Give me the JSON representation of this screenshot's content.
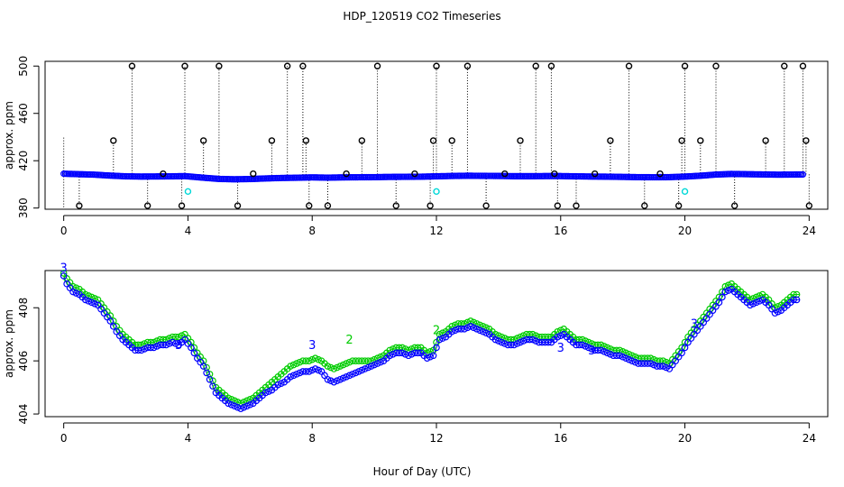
{
  "figure": {
    "title": "HDP_120519  CO2 Timeseries",
    "xlabel": "Hour of Day (UTC)"
  },
  "colors": {
    "blue": "#0000ff",
    "green": "#00cc00",
    "cyan": "#00d8d8",
    "black": "#000000"
  },
  "chart_data": [
    {
      "type": "scatter",
      "title": "",
      "xlabel": "",
      "ylabel": "approx. ppm",
      "xlim": [
        -0.6,
        24.6
      ],
      "ylim": [
        379,
        504
      ],
      "xticks": [
        0,
        4,
        8,
        12,
        16,
        20,
        24
      ],
      "yticks": [
        380,
        420,
        460,
        500
      ],
      "baseline": [
        [
          0,
          409
        ],
        [
          0.5,
          408.6
        ],
        [
          1.0,
          408.2
        ],
        [
          1.5,
          407.4
        ],
        [
          2.0,
          406.8
        ],
        [
          2.5,
          406.6
        ],
        [
          3.0,
          406.7
        ],
        [
          3.5,
          406.8
        ],
        [
          3.9,
          407.0
        ],
        [
          4.2,
          406.3
        ],
        [
          4.6,
          405.4
        ],
        [
          5.0,
          404.6
        ],
        [
          5.5,
          404.3
        ],
        [
          6.0,
          404.5
        ],
        [
          6.5,
          405.0
        ],
        [
          7.0,
          405.4
        ],
        [
          7.5,
          405.6
        ],
        [
          8.0,
          405.9
        ],
        [
          8.5,
          405.7
        ],
        [
          9.0,
          405.9
        ],
        [
          9.5,
          406.0
        ],
        [
          10.0,
          406.1
        ],
        [
          10.5,
          406.3
        ],
        [
          11.0,
          406.4
        ],
        [
          11.5,
          406.5
        ],
        [
          12.0,
          406.8
        ],
        [
          12.5,
          407.1
        ],
        [
          13.0,
          407.3
        ],
        [
          13.5,
          407.2
        ],
        [
          14.0,
          407.1
        ],
        [
          14.5,
          406.9
        ],
        [
          15.0,
          406.9
        ],
        [
          15.5,
          407.0
        ],
        [
          16.0,
          407.0
        ],
        [
          16.5,
          406.8
        ],
        [
          17.0,
          406.6
        ],
        [
          17.5,
          406.5
        ],
        [
          18.0,
          406.3
        ],
        [
          18.5,
          406.1
        ],
        [
          19.0,
          406.0
        ],
        [
          19.5,
          406.1
        ],
        [
          20.0,
          406.6
        ],
        [
          20.5,
          407.3
        ],
        [
          21.0,
          408.3
        ],
        [
          21.5,
          408.8
        ],
        [
          22.0,
          408.6
        ],
        [
          22.5,
          408.4
        ],
        [
          23.0,
          408.2
        ],
        [
          23.5,
          408.3
        ],
        [
          23.8,
          408.4
        ]
      ],
      "spike_x": [
        0.5,
        1.6,
        2.2,
        2.7,
        3.2,
        3.8,
        3.9,
        4.5,
        5.0,
        5.6,
        6.1,
        6.7,
        7.2,
        7.7,
        7.8,
        7.9,
        8.5,
        9.1,
        9.6,
        10.1,
        10.7,
        11.3,
        11.8,
        11.9,
        12.0,
        12.5,
        13.0,
        13.6,
        14.2,
        14.7,
        15.2,
        15.7,
        15.8,
        15.9,
        16.5,
        17.1,
        17.6,
        18.2,
        18.7,
        19.2,
        19.8,
        19.9,
        20.0,
        20.5,
        21.0,
        21.6,
        22.6,
        23.2,
        23.8,
        23.9,
        24.0
      ],
      "spike_y": [
        382,
        437,
        500,
        382,
        409,
        382,
        500,
        437,
        500,
        382,
        409,
        437,
        500,
        500,
        437,
        382,
        382,
        409,
        437,
        500,
        382,
        409,
        382,
        437,
        500,
        437,
        500,
        382,
        409,
        437,
        500,
        500,
        409,
        382,
        382,
        409,
        437,
        500,
        382,
        409,
        382,
        437,
        500,
        437,
        500,
        382,
        437,
        500,
        500,
        437,
        382
      ],
      "extra_x": [
        3.8,
        7.9,
        11.9,
        15.9,
        19.9,
        24.0
      ],
      "cyan_points": [
        [
          4.0,
          394
        ],
        [
          12.0,
          394
        ],
        [
          20.0,
          394
        ]
      ]
    },
    {
      "type": "line",
      "title": "",
      "xlabel": "Hour of Day (UTC)",
      "ylabel": "approx. ppm",
      "xlim": [
        -0.6,
        24.6
      ],
      "ylim": [
        403.9,
        409.4
      ],
      "xticks": [
        0,
        4,
        8,
        12,
        16,
        20,
        24
      ],
      "yticks": [
        404,
        406,
        408
      ],
      "series": [
        {
          "name": "3",
          "x": [
            0,
            0.1,
            0.3,
            0.5,
            0.7,
            0.9,
            1.1,
            1.3,
            1.5,
            1.7,
            1.9,
            2.1,
            2.3,
            2.5,
            2.7,
            2.9,
            3.1,
            3.3,
            3.5,
            3.7,
            3.9,
            4.1,
            4.3,
            4.5,
            4.7,
            4.9,
            5.1,
            5.3,
            5.5,
            5.7,
            5.9,
            6.1,
            6.3,
            6.5,
            6.7,
            6.9,
            7.1,
            7.3,
            7.5,
            7.7,
            7.9,
            8.1,
            8.3,
            8.5,
            8.7,
            8.9,
            9.1,
            9.3,
            9.5,
            9.7,
            9.9,
            10.1,
            10.3,
            10.5,
            10.7,
            10.9,
            11.1,
            11.3,
            11.5,
            11.7,
            11.9,
            12.1,
            12.3,
            12.5,
            12.7,
            12.9,
            13.1,
            13.3,
            13.5,
            13.7,
            13.9,
            14.1,
            14.3,
            14.5,
            14.7,
            14.9,
            15.1,
            15.3,
            15.5,
            15.7,
            15.9,
            16.1,
            16.3,
            16.5,
            16.7,
            16.9,
            17.1,
            17.3,
            17.5,
            17.7,
            17.9,
            18.1,
            18.3,
            18.5,
            18.7,
            18.9,
            19.1,
            19.3,
            19.5,
            19.7,
            19.9,
            20.1,
            20.3,
            20.5,
            20.7,
            20.9,
            21.1,
            21.3,
            21.5,
            21.7,
            21.9,
            22.1,
            22.3,
            22.5,
            22.7,
            22.9,
            23.1,
            23.3,
            23.5,
            23.7
          ],
          "values": [
            409.2,
            408.9,
            408.6,
            408.5,
            408.3,
            408.2,
            408.1,
            407.8,
            407.5,
            407.1,
            406.8,
            406.6,
            406.4,
            406.4,
            406.5,
            406.5,
            406.6,
            406.6,
            406.7,
            406.6,
            406.8,
            406.5,
            406.1,
            405.8,
            405.3,
            404.8,
            404.6,
            404.4,
            404.3,
            404.2,
            404.3,
            404.4,
            404.6,
            404.8,
            404.9,
            405.1,
            405.2,
            405.4,
            405.5,
            405.6,
            405.6,
            405.7,
            405.6,
            405.3,
            405.2,
            405.3,
            405.4,
            405.5,
            405.6,
            405.7,
            405.8,
            405.9,
            406.0,
            406.2,
            406.3,
            406.3,
            406.2,
            406.3,
            406.3,
            406.1,
            406.2,
            406.8,
            406.9,
            407.1,
            407.2,
            407.2,
            407.3,
            407.2,
            407.1,
            407.0,
            406.8,
            406.7,
            406.6,
            406.6,
            406.7,
            406.8,
            406.8,
            406.7,
            406.7,
            406.7,
            406.9,
            407.0,
            406.8,
            406.6,
            406.6,
            406.5,
            406.4,
            406.4,
            406.3,
            406.2,
            406.2,
            406.1,
            406.0,
            405.9,
            405.9,
            405.9,
            405.8,
            405.8,
            405.7,
            406.0,
            406.3,
            406.7,
            407.0,
            407.3,
            407.6,
            407.9,
            408.2,
            408.6,
            408.7,
            408.5,
            408.3,
            408.1,
            408.2,
            408.3,
            408.1,
            407.8,
            407.9,
            408.1,
            408.3,
            408.3
          ]
        },
        {
          "name": "2",
          "x": [
            0,
            0.1,
            0.3,
            0.5,
            0.7,
            0.9,
            1.1,
            1.3,
            1.5,
            1.7,
            1.9,
            2.1,
            2.3,
            2.5,
            2.7,
            2.9,
            3.1,
            3.3,
            3.5,
            3.7,
            3.9,
            4.1,
            4.3,
            4.5,
            4.7,
            4.9,
            5.1,
            5.3,
            5.5,
            5.7,
            5.9,
            6.1,
            6.3,
            6.5,
            6.7,
            6.9,
            7.1,
            7.3,
            7.5,
            7.7,
            7.9,
            8.1,
            8.3,
            8.5,
            8.7,
            8.9,
            9.1,
            9.3,
            9.5,
            9.7,
            9.9,
            10.1,
            10.3,
            10.5,
            10.7,
            10.9,
            11.1,
            11.3,
            11.5,
            11.7,
            11.9,
            12.1,
            12.3,
            12.5,
            12.7,
            12.9,
            13.1,
            13.3,
            13.5,
            13.7,
            13.9,
            14.1,
            14.3,
            14.5,
            14.7,
            14.9,
            15.1,
            15.3,
            15.5,
            15.7,
            15.9,
            16.1,
            16.3,
            16.5,
            16.7,
            16.9,
            17.1,
            17.3,
            17.5,
            17.7,
            17.9,
            18.1,
            18.3,
            18.5,
            18.7,
            18.9,
            19.1,
            19.3,
            19.5,
            19.7,
            19.9,
            20.1,
            20.3,
            20.5,
            20.7,
            20.9,
            21.1,
            21.3,
            21.5,
            21.7,
            21.9,
            22.1,
            22.3,
            22.5,
            22.7,
            22.9,
            23.1,
            23.3,
            23.5,
            23.7
          ],
          "values": [
            409.3,
            409.1,
            408.8,
            408.7,
            408.5,
            408.4,
            408.3,
            408.0,
            407.7,
            407.3,
            407.0,
            406.8,
            406.6,
            406.6,
            406.7,
            406.7,
            406.8,
            406.8,
            406.9,
            406.9,
            407.0,
            406.7,
            406.3,
            406.0,
            405.5,
            405.0,
            404.8,
            404.6,
            404.5,
            404.4,
            404.5,
            404.6,
            404.8,
            405.0,
            405.2,
            405.4,
            405.6,
            405.8,
            405.9,
            406.0,
            406.0,
            406.1,
            406.0,
            405.8,
            405.7,
            405.8,
            405.9,
            406.0,
            406.0,
            406.0,
            406.0,
            406.1,
            406.2,
            406.4,
            406.5,
            406.5,
            406.4,
            406.5,
            406.5,
            406.3,
            406.4,
            407.0,
            407.1,
            407.3,
            407.4,
            407.4,
            407.5,
            407.4,
            407.3,
            407.2,
            407.0,
            406.9,
            406.8,
            406.8,
            406.9,
            407.0,
            407.0,
            406.9,
            406.9,
            406.9,
            407.1,
            407.2,
            407.0,
            406.8,
            406.8,
            406.7,
            406.6,
            406.6,
            406.5,
            406.4,
            406.4,
            406.3,
            406.2,
            406.1,
            406.1,
            406.1,
            406.0,
            406.0,
            405.9,
            406.2,
            406.5,
            406.9,
            407.2,
            407.5,
            407.8,
            408.1,
            408.4,
            408.8,
            408.9,
            408.7,
            408.5,
            408.3,
            408.4,
            408.5,
            408.3,
            408.0,
            408.1,
            408.3,
            408.5,
            408.5
          ]
        }
      ]
    }
  ]
}
